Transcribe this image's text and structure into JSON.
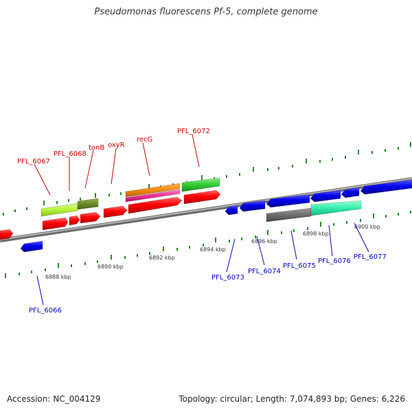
{
  "title": "Pseudomonas fluorescens Pf-5, complete genome",
  "footer": {
    "accession": "Accession: NC_004129",
    "summary": "Topology: circular; Length: 7,074,893 bp; Genes: 6,226"
  },
  "colors": {
    "background": "#ffffff",
    "backbone": "#8a8a8a",
    "forward_gene": "#ff0000",
    "reverse_gene": "#0000ee",
    "label_top": "#cc0000",
    "label_bottom": "#0000bb",
    "tick": "#228822",
    "lime_feature": "#b6f23a",
    "olive_feature": "#6a8c28",
    "orange_feature": "#f08a10",
    "magenta_feature": "#ee3399",
    "green_feature": "#33cc33",
    "gray_feature": "#6e6e6e",
    "mint_feature": "#33eeaa"
  },
  "scale_labels": [
    "6888 kbp",
    "6890 kbp",
    "6892 kbp",
    "6894 kbp",
    "6896 kbp",
    "6898 kbp",
    "6900 kbp"
  ],
  "gene_labels_top": [
    "PFL_6067",
    "PFL_6068",
    "tonB",
    "oxyR",
    "recG",
    "PFL_6072"
  ],
  "gene_labels_bottom": [
    "PFL_6066",
    "PFL_6073",
    "PFL_6074",
    "PFL_6075",
    "PFL_6076",
    "PFL_6077"
  ]
}
